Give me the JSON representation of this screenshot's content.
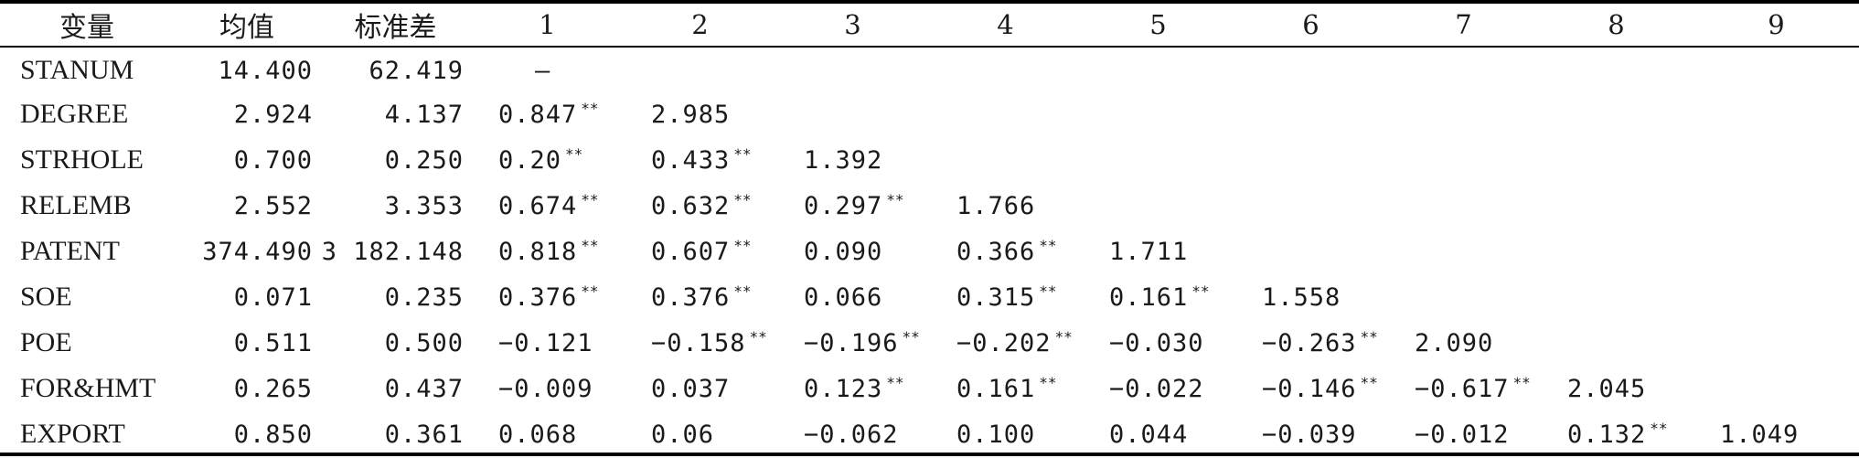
{
  "table": {
    "headers": [
      "变量",
      "均值",
      "标准差",
      "1",
      "2",
      "3",
      "4",
      "5",
      "6",
      "7",
      "8",
      "9"
    ],
    "rows": [
      {
        "var": "STANUM",
        "mean": "14.400",
        "sd": "62.419",
        "cells": [
          {
            "v": "—",
            "sig": ""
          }
        ]
      },
      {
        "var": "DEGREE",
        "mean": "2.924",
        "sd": "4.137",
        "cells": [
          {
            "v": "0.847",
            "sig": "**"
          },
          {
            "v": "2.985",
            "sig": ""
          }
        ]
      },
      {
        "var": "STRHOLE",
        "mean": "0.700",
        "sd": "0.250",
        "cells": [
          {
            "v": "0.20",
            "sig": "**"
          },
          {
            "v": "0.433",
            "sig": "**"
          },
          {
            "v": "1.392",
            "sig": ""
          }
        ]
      },
      {
        "var": "RELEMB",
        "mean": "2.552",
        "sd": "3.353",
        "cells": [
          {
            "v": "0.674",
            "sig": "**"
          },
          {
            "v": "0.632",
            "sig": "**"
          },
          {
            "v": "0.297",
            "sig": "**"
          },
          {
            "v": "1.766",
            "sig": ""
          }
        ]
      },
      {
        "var": "PATENT",
        "mean": "374.490",
        "sd": "3 182.148",
        "cells": [
          {
            "v": "0.818",
            "sig": "**"
          },
          {
            "v": "0.607",
            "sig": "**"
          },
          {
            "v": "0.090",
            "sig": ""
          },
          {
            "v": "0.366",
            "sig": "**"
          },
          {
            "v": "1.711",
            "sig": ""
          }
        ]
      },
      {
        "var": "SOE",
        "mean": "0.071",
        "sd": "0.235",
        "cells": [
          {
            "v": "0.376",
            "sig": "**"
          },
          {
            "v": "0.376",
            "sig": "**"
          },
          {
            "v": "0.066",
            "sig": ""
          },
          {
            "v": "0.315",
            "sig": "**"
          },
          {
            "v": "0.161",
            "sig": "**"
          },
          {
            "v": "1.558",
            "sig": ""
          }
        ]
      },
      {
        "var": "POE",
        "mean": "0.511",
        "sd": "0.500",
        "cells": [
          {
            "v": "−0.121",
            "sig": ""
          },
          {
            "v": "−0.158",
            "sig": "**"
          },
          {
            "v": "−0.196",
            "sig": "**"
          },
          {
            "v": "−0.202",
            "sig": "**"
          },
          {
            "v": "−0.030",
            "sig": ""
          },
          {
            "v": "−0.263",
            "sig": "**"
          },
          {
            "v": "2.090",
            "sig": ""
          }
        ]
      },
      {
        "var": "FOR&HMT",
        "mean": "0.265",
        "sd": "0.437",
        "cells": [
          {
            "v": "−0.009",
            "sig": ""
          },
          {
            "v": "0.037",
            "sig": ""
          },
          {
            "v": "0.123",
            "sig": "**"
          },
          {
            "v": "0.161",
            "sig": "**"
          },
          {
            "v": "−0.022",
            "sig": ""
          },
          {
            "v": "−0.146",
            "sig": "**"
          },
          {
            "v": "−0.617",
            "sig": "**"
          },
          {
            "v": "2.045",
            "sig": ""
          }
        ]
      },
      {
        "var": "EXPORT",
        "mean": "0.850",
        "sd": "0.361",
        "cells": [
          {
            "v": "0.068",
            "sig": ""
          },
          {
            "v": "0.06",
            "sig": ""
          },
          {
            "v": "−0.062",
            "sig": ""
          },
          {
            "v": "0.100",
            "sig": ""
          },
          {
            "v": "0.044",
            "sig": ""
          },
          {
            "v": "−0.039",
            "sig": ""
          },
          {
            "v": "−0.012",
            "sig": ""
          },
          {
            "v": "0.132",
            "sig": "**"
          },
          {
            "v": "1.049",
            "sig": ""
          }
        ]
      }
    ]
  }
}
